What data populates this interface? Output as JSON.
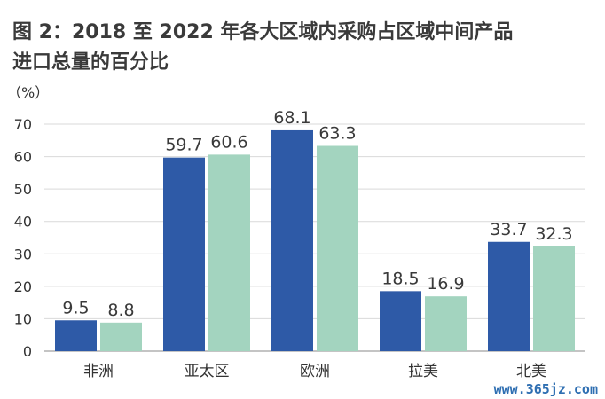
{
  "figure": {
    "title_line1": "图 2：2018 至 2022 年各大区域内采购占区域中间产品",
    "title_line2": "进口总量的百分比",
    "watermark": "www.365jz.com"
  },
  "chart_data": {
    "type": "bar",
    "categories": [
      "非洲",
      "亚太区",
      "欧洲",
      "拉美",
      "北美"
    ],
    "series": [
      {
        "values": [
          9.5,
          59.7,
          68.1,
          18.5,
          33.7
        ],
        "color": "#2e5aa7"
      },
      {
        "values": [
          8.8,
          60.6,
          63.3,
          16.9,
          32.3
        ],
        "color": "#a3d4bf"
      }
    ],
    "ylabel": "（%）",
    "ylim": [
      0,
      70
    ],
    "yticks": [
      0,
      10,
      20,
      30,
      40,
      50,
      60,
      70
    ],
    "grid": true,
    "legend": "none"
  }
}
